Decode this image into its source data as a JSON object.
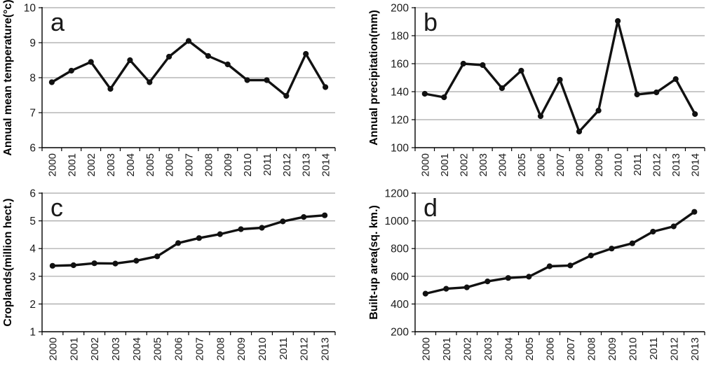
{
  "figure": {
    "background": "#ffffff",
    "line_color": "#111111",
    "grid_color": "#a6a6a6",
    "axis_color": "#000000",
    "text_color": "#1a1a1a"
  },
  "chart_data": [
    {
      "panel": "a",
      "type": "line",
      "title": "",
      "xlabel": "",
      "ylabel": "Annual mean temperature(°c)",
      "categories": [
        "2000",
        "2001",
        "2002",
        "2003",
        "2004",
        "2005",
        "2006",
        "2007",
        "2008",
        "2009",
        "2010",
        "2011",
        "2012",
        "2013",
        "2014"
      ],
      "values": [
        7.87,
        8.2,
        8.45,
        7.68,
        8.5,
        7.87,
        8.6,
        9.05,
        8.62,
        8.38,
        7.93,
        7.93,
        7.48,
        8.68,
        7.73
      ],
      "ylim": [
        6,
        10
      ],
      "ytick_step": 1,
      "yticks": [
        6,
        7,
        8,
        9,
        10
      ],
      "grid": true,
      "legend": "none",
      "marker": "circle",
      "line_color": "#111111",
      "grid_color": "#a6a6a6"
    },
    {
      "panel": "b",
      "type": "line",
      "title": "",
      "xlabel": "",
      "ylabel": "Annual precipitation(mm)",
      "categories": [
        "2000",
        "2001",
        "2002",
        "2003",
        "2004",
        "2005",
        "2006",
        "2007",
        "2008",
        "2009",
        "2010",
        "2011",
        "2012",
        "2013",
        "2014"
      ],
      "values": [
        138.5,
        136,
        160,
        159,
        142.5,
        155,
        122.5,
        148.5,
        111.5,
        126.5,
        190.5,
        138,
        139.5,
        149,
        124
      ],
      "ylim": [
        100,
        200
      ],
      "ytick_step": 20,
      "yticks": [
        100,
        120,
        140,
        160,
        180,
        200
      ],
      "grid": true,
      "legend": "none",
      "marker": "circle",
      "line_color": "#111111",
      "grid_color": "#a6a6a6"
    },
    {
      "panel": "c",
      "type": "line",
      "title": "",
      "xlabel": "",
      "ylabel": "Croplands(million hect.)",
      "categories": [
        "2000",
        "2001",
        "2002",
        "2003",
        "2004",
        "2005",
        "2006",
        "2007",
        "2008",
        "2009",
        "2010",
        "2011",
        "2012",
        "2013"
      ],
      "values": [
        3.38,
        3.4,
        3.47,
        3.46,
        3.56,
        3.72,
        4.2,
        4.38,
        4.52,
        4.7,
        4.75,
        4.98,
        5.14,
        5.2
      ],
      "ylim": [
        1,
        6
      ],
      "ytick_step": 1,
      "yticks": [
        1,
        2,
        3,
        4,
        5,
        6
      ],
      "grid": true,
      "legend": "none",
      "marker": "circle",
      "line_color": "#111111",
      "grid_color": "#a6a6a6"
    },
    {
      "panel": "d",
      "type": "line",
      "title": "",
      "xlabel": "",
      "ylabel": "Built-up area(sq. km.)",
      "categories": [
        "2000",
        "2001",
        "2002",
        "2003",
        "2004",
        "2005",
        "2006",
        "2007",
        "2008",
        "2009",
        "2010",
        "2011",
        "2012",
        "2013"
      ],
      "values": [
        475,
        510,
        520,
        563,
        588,
        597,
        672,
        678,
        750,
        800,
        838,
        922,
        960,
        1065
      ],
      "ylim": [
        200,
        1200
      ],
      "ytick_step": 200,
      "yticks": [
        200,
        400,
        600,
        800,
        1000,
        1200
      ],
      "grid": true,
      "legend": "none",
      "marker": "circle",
      "line_color": "#111111",
      "grid_color": "#a6a6a6"
    }
  ]
}
